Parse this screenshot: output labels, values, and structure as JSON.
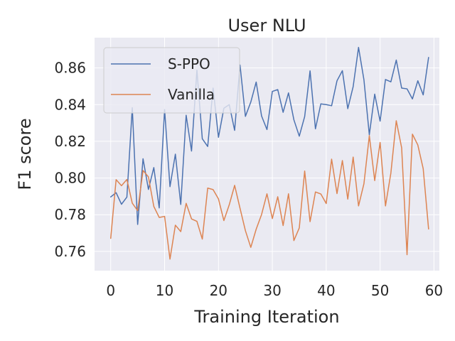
{
  "chart_data": {
    "type": "line",
    "title": "User NLU",
    "xlabel": "Training Iteration",
    "ylabel": "F1 score",
    "xlim": [
      -3,
      61
    ],
    "ylim": [
      0.7495,
      0.8765
    ],
    "xticks": [
      0,
      10,
      20,
      30,
      40,
      50,
      60
    ],
    "yticks": [
      0.76,
      0.78,
      0.8,
      0.82,
      0.84,
      0.86
    ],
    "ytick_labels": [
      "0.76",
      "0.78",
      "0.80",
      "0.82",
      "0.84",
      "0.86"
    ],
    "grid": true,
    "legend_position": "top-left",
    "background_color": "#eaeaf2",
    "x": [
      0,
      1,
      2,
      3,
      4,
      5,
      6,
      7,
      8,
      9,
      10,
      11,
      12,
      13,
      14,
      15,
      16,
      17,
      18,
      19,
      20,
      21,
      22,
      23,
      24,
      25,
      26,
      27,
      28,
      29,
      30,
      31,
      32,
      33,
      34,
      35,
      36,
      37,
      38,
      39,
      40,
      41,
      42,
      43,
      44,
      45,
      46,
      47,
      48,
      49,
      50,
      51,
      52,
      53,
      54,
      55,
      56,
      57,
      58,
      59
    ],
    "series": [
      {
        "name": "S-PPO",
        "color": "#4c72b0",
        "values": [
          0.7897,
          0.792,
          0.7857,
          0.7896,
          0.8383,
          0.7747,
          0.8105,
          0.7938,
          0.8057,
          0.7837,
          0.8373,
          0.7953,
          0.813,
          0.7856,
          0.8342,
          0.8147,
          0.8588,
          0.8214,
          0.8172,
          0.849,
          0.8222,
          0.838,
          0.84,
          0.826,
          0.8616,
          0.8336,
          0.8414,
          0.8523,
          0.8338,
          0.8264,
          0.8472,
          0.8482,
          0.8358,
          0.8464,
          0.8317,
          0.8228,
          0.8335,
          0.8584,
          0.8268,
          0.8404,
          0.84,
          0.8394,
          0.853,
          0.8585,
          0.8378,
          0.8498,
          0.8712,
          0.8535,
          0.8236,
          0.8457,
          0.831,
          0.8537,
          0.8524,
          0.8643,
          0.849,
          0.8486,
          0.8431,
          0.853,
          0.8453,
          0.8657
        ]
      },
      {
        "name": "Vanilla",
        "color": "#dd8452",
        "values": [
          0.7671,
          0.7991,
          0.7958,
          0.7992,
          0.7863,
          0.7822,
          0.8041,
          0.8006,
          0.7845,
          0.7785,
          0.7791,
          0.7558,
          0.7743,
          0.7708,
          0.7862,
          0.7777,
          0.7764,
          0.7667,
          0.7945,
          0.7937,
          0.7886,
          0.7768,
          0.7854,
          0.796,
          0.7835,
          0.7713,
          0.7622,
          0.7721,
          0.7801,
          0.7914,
          0.7779,
          0.7898,
          0.7741,
          0.7914,
          0.7659,
          0.7728,
          0.8038,
          0.7762,
          0.7924,
          0.7913,
          0.7861,
          0.8103,
          0.7915,
          0.8095,
          0.7885,
          0.8114,
          0.7848,
          0.7969,
          0.8231,
          0.7986,
          0.8194,
          0.7848,
          0.8027,
          0.8312,
          0.8165,
          0.7582,
          0.8239,
          0.818,
          0.8051,
          0.7722
        ]
      }
    ]
  }
}
